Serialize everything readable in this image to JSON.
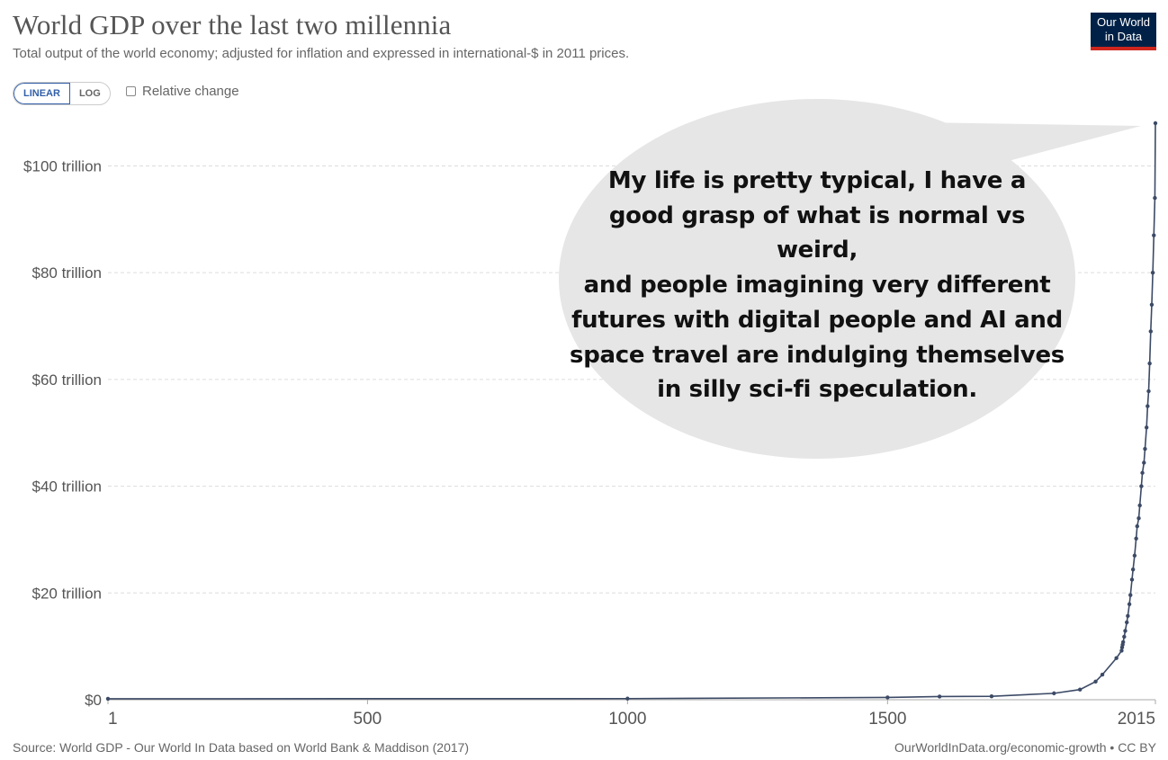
{
  "header": {
    "title": "World GDP over the last two millennia",
    "subtitle": "Total output of the world economy; adjusted for inflation and expressed in international-$ in 2011 prices.",
    "logo_line1": "Our World",
    "logo_line2": "in Data"
  },
  "controls": {
    "linear_label": "LINEAR",
    "log_label": "LOG",
    "relative_change_label": "Relative change",
    "selected_scale": "LINEAR"
  },
  "speech_bubble": {
    "lines": [
      "My life is pretty typical, I have a",
      "good grasp of what is normal vs weird,",
      "and people imagining very different",
      "futures with digital people and AI and",
      "space travel are indulging themselves",
      "in silly sci-fi speculation."
    ]
  },
  "footer": {
    "source": "Source: World GDP - Our World In Data based on World Bank & Maddison (2017)",
    "credit": "OurWorldInData.org/economic-growth • CC BY"
  },
  "colors": {
    "line": "#3c4a66",
    "grid": "#dddddd",
    "bubble": "#e6e6e6",
    "logo_bg": "#002147",
    "logo_accent": "#ce261e"
  },
  "chart_data": {
    "type": "line",
    "x_scale": "linear",
    "y_scale": "linear",
    "xlim": [
      1,
      2015
    ],
    "ylim": [
      0,
      108
    ],
    "y_unit": "trillion international-$ (2011 prices)",
    "x_ticks": [
      {
        "value": 1,
        "label": "1"
      },
      {
        "value": 500,
        "label": "500"
      },
      {
        "value": 1000,
        "label": "1000"
      },
      {
        "value": 1500,
        "label": "1500"
      },
      {
        "value": 2015,
        "label": "2015"
      }
    ],
    "y_ticks": [
      {
        "value": 0,
        "label": "$0"
      },
      {
        "value": 20,
        "label": "$20 trillion"
      },
      {
        "value": 40,
        "label": "$40 trillion"
      },
      {
        "value": 60,
        "label": "$60 trillion"
      },
      {
        "value": 80,
        "label": "$80 trillion"
      },
      {
        "value": 100,
        "label": "$100 trillion"
      }
    ],
    "grid": "horizontal dashed",
    "series": [
      {
        "x": [
          1,
          1000,
          1500,
          1600,
          1700,
          1820,
          1870,
          1900,
          1913,
          1940,
          1950,
          1951,
          1952,
          1953,
          1955,
          1957,
          1960,
          1962,
          1965,
          1967,
          1970,
          1972,
          1975,
          1978,
          1980,
          1983,
          1985,
          1988,
          1990,
          1993,
          1995,
          1998,
          2000,
          2002,
          2004,
          2006,
          2008,
          2010,
          2012,
          2014,
          2015
        ],
        "y": [
          0.18,
          0.21,
          0.43,
          0.6,
          0.64,
          1.2,
          1.9,
          3.4,
          4.7,
          7.8,
          9.2,
          9.8,
          10.3,
          10.8,
          11.8,
          12.9,
          14.5,
          15.7,
          17.9,
          19.6,
          22.5,
          24.4,
          27.0,
          30.2,
          32.5,
          34.0,
          36.4,
          40.0,
          42.5,
          44.4,
          47.0,
          51.0,
          55.0,
          57.8,
          63.0,
          69.0,
          74.0,
          80.0,
          87.0,
          94.0,
          108.0
        ]
      }
    ]
  }
}
